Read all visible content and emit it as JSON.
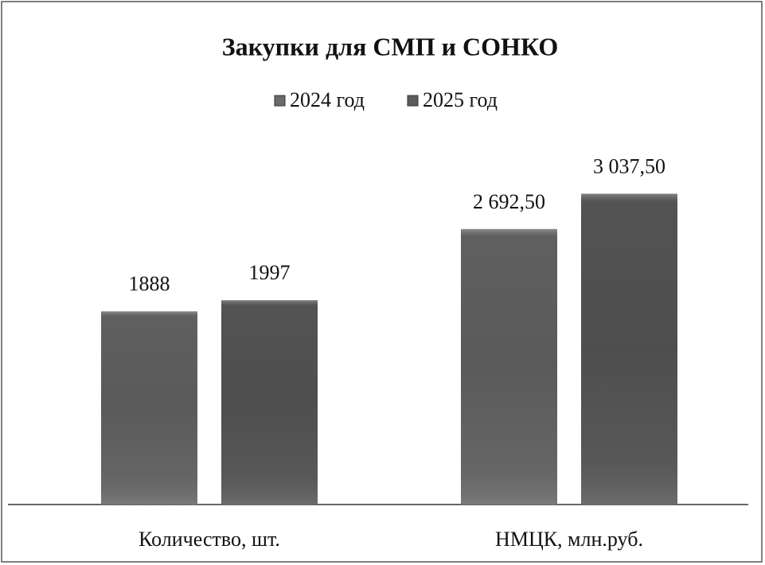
{
  "chart_data": {
    "type": "bar",
    "title": "Закупки для СМП и СОНКО",
    "categories": [
      "Количество, шт.",
      "НМЦК, млн.руб."
    ],
    "series": [
      {
        "name": "2024 год",
        "color": "#6a6a6a",
        "values": [
          1888,
          2692.5
        ],
        "value_labels": [
          "1888",
          "2 692,50"
        ]
      },
      {
        "name": "2025 год",
        "color": "#5c5c5c",
        "values": [
          1997,
          3037.5
        ],
        "value_labels": [
          "1997",
          "3 037,50"
        ]
      }
    ],
    "ylim": [
      0,
      3500
    ],
    "legend": "top"
  }
}
